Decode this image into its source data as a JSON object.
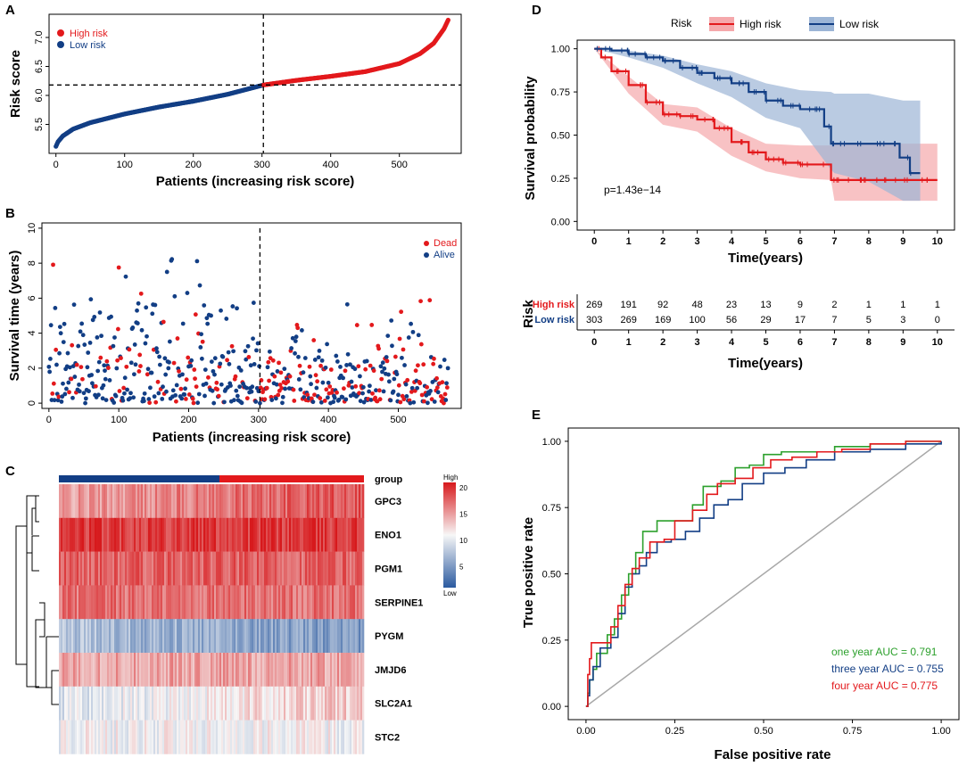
{
  "colors": {
    "high": "#e3191c",
    "low": "#123e85",
    "green": "#2ca02c",
    "grey": "#a8a8a8",
    "heat_high": "#d7191c",
    "heat_mid": "#f7f7f7",
    "heat_low": "#2b5aa0"
  },
  "chart_data": [
    {
      "panel": "A",
      "type": "scatter",
      "xlabel": "Patients (increasing risk score)",
      "ylabel": "Risk score",
      "xlim": [
        -10,
        590
      ],
      "ylim": [
        5.0,
        7.4
      ],
      "xticks": [
        0,
        100,
        200,
        300,
        400,
        500
      ],
      "yticks": [
        5.5,
        6.0,
        6.5,
        7.0
      ],
      "cutoff_x": 302,
      "cutoff_y": 6.18,
      "legend": [
        {
          "label": "High risk",
          "color": "high"
        },
        {
          "label": "Low risk",
          "color": "low"
        }
      ],
      "n_patients": 572,
      "curve": [
        [
          0,
          5.12
        ],
        [
          3,
          5.2
        ],
        [
          10,
          5.3
        ],
        [
          25,
          5.42
        ],
        [
          50,
          5.53
        ],
        [
          100,
          5.68
        ],
        [
          150,
          5.8
        ],
        [
          200,
          5.9
        ],
        [
          250,
          6.02
        ],
        [
          302,
          6.18
        ],
        [
          350,
          6.26
        ],
        [
          400,
          6.33
        ],
        [
          450,
          6.41
        ],
        [
          500,
          6.55
        ],
        [
          530,
          6.72
        ],
        [
          550,
          6.9
        ],
        [
          565,
          7.15
        ],
        [
          571,
          7.3
        ]
      ]
    },
    {
      "panel": "B",
      "type": "scatter",
      "xlabel": "Patients (increasing risk score)",
      "ylabel": "Survival time (years)",
      "xlim": [
        -10,
        590
      ],
      "ylim": [
        -0.3,
        10.3
      ],
      "xticks": [
        0,
        100,
        200,
        300,
        400,
        500
      ],
      "yticks": [
        0,
        2,
        4,
        6,
        8,
        10
      ],
      "cutoff_x": 302,
      "legend": [
        {
          "label": "Dead",
          "color": "high"
        },
        {
          "label": "Alive",
          "color": "low"
        }
      ]
    },
    {
      "panel": "C",
      "type": "heatmap",
      "genes": [
        "GPC3",
        "ENO1",
        "PGM1",
        "SERPINE1",
        "PYGM",
        "JMJD6",
        "SLC2A1",
        "STC2"
      ],
      "group_label": "group",
      "legend_title": "High",
      "legend_bottom": "Low",
      "legend_ticks": [
        20,
        15,
        10,
        5
      ],
      "mean_values": [
        17.5,
        20.5,
        18.5,
        17.8,
        6.5,
        15.5,
        12.0,
        11.5
      ],
      "group_split": 0.53
    },
    {
      "panel": "D",
      "type": "line",
      "xlabel": "Time(years)",
      "ylabel": "Survival probability",
      "xlim": [
        -0.5,
        10.5
      ],
      "ylim": [
        -0.05,
        1.05
      ],
      "xticks": [
        0,
        1,
        2,
        3,
        4,
        5,
        6,
        7,
        8,
        9,
        10
      ],
      "yticks": [
        "0.00",
        "0.25",
        "0.50",
        "0.75",
        "1.00"
      ],
      "legend_title": "Risk",
      "pvalue": "p=1.43e−14",
      "series": [
        {
          "name": "High risk",
          "color": "high",
          "steps": [
            [
              0,
              1.0
            ],
            [
              0.2,
              0.95
            ],
            [
              0.5,
              0.87
            ],
            [
              1,
              0.79
            ],
            [
              1.5,
              0.69
            ],
            [
              2,
              0.62
            ],
            [
              2.5,
              0.61
            ],
            [
              3,
              0.59
            ],
            [
              3.5,
              0.54
            ],
            [
              4,
              0.46
            ],
            [
              4.5,
              0.4
            ],
            [
              5,
              0.36
            ],
            [
              5.5,
              0.34
            ],
            [
              6,
              0.33
            ],
            [
              6.8,
              0.33
            ],
            [
              6.9,
              0.24
            ],
            [
              10,
              0.24
            ]
          ]
        },
        {
          "name": "Low risk",
          "color": "low",
          "steps": [
            [
              0,
              1.0
            ],
            [
              0.5,
              0.99
            ],
            [
              1,
              0.97
            ],
            [
              1.5,
              0.95
            ],
            [
              2,
              0.93
            ],
            [
              2.5,
              0.89
            ],
            [
              3,
              0.86
            ],
            [
              3.5,
              0.83
            ],
            [
              4,
              0.8
            ],
            [
              4.5,
              0.75
            ],
            [
              5,
              0.7
            ],
            [
              5.5,
              0.67
            ],
            [
              6,
              0.65
            ],
            [
              6.5,
              0.65
            ],
            [
              6.7,
              0.55
            ],
            [
              6.9,
              0.45
            ],
            [
              8,
              0.45
            ],
            [
              8.5,
              0.45
            ],
            [
              8.9,
              0.37
            ],
            [
              9.2,
              0.28
            ],
            [
              9.5,
              0.28
            ]
          ]
        }
      ],
      "bands": [
        {
          "color": "high",
          "upper": [
            [
              0,
              1.0
            ],
            [
              1,
              0.84
            ],
            [
              2,
              0.68
            ],
            [
              3,
              0.66
            ],
            [
              4,
              0.54
            ],
            [
              5,
              0.45
            ],
            [
              6,
              0.44
            ],
            [
              6.9,
              0.44
            ],
            [
              7,
              0.45
            ],
            [
              10,
              0.45
            ]
          ],
          "lower": [
            [
              0,
              1.0
            ],
            [
              1,
              0.74
            ],
            [
              2,
              0.56
            ],
            [
              3,
              0.52
            ],
            [
              4,
              0.38
            ],
            [
              5,
              0.29
            ],
            [
              6,
              0.25
            ],
            [
              6.9,
              0.24
            ],
            [
              7,
              0.12
            ],
            [
              10,
              0.12
            ]
          ]
        },
        {
          "color": "low",
          "upper": [
            [
              0,
              1.0
            ],
            [
              1,
              0.99
            ],
            [
              2,
              0.96
            ],
            [
              3,
              0.91
            ],
            [
              4,
              0.87
            ],
            [
              5,
              0.8
            ],
            [
              6,
              0.76
            ],
            [
              6.9,
              0.75
            ],
            [
              7,
              0.74
            ],
            [
              8,
              0.74
            ],
            [
              9,
              0.7
            ],
            [
              9.5,
              0.7
            ]
          ],
          "lower": [
            [
              0,
              1.0
            ],
            [
              1,
              0.95
            ],
            [
              2,
              0.89
            ],
            [
              3,
              0.8
            ],
            [
              4,
              0.72
            ],
            [
              5,
              0.6
            ],
            [
              6,
              0.54
            ],
            [
              6.9,
              0.3
            ],
            [
              7,
              0.28
            ],
            [
              8,
              0.23
            ],
            [
              9,
              0.12
            ],
            [
              9.5,
              0.12
            ]
          ]
        }
      ]
    },
    {
      "panel": "D-risk-table",
      "type": "table",
      "ylabel": "Risk",
      "xlabel": "Time(years)",
      "xticks": [
        0,
        1,
        2,
        3,
        4,
        5,
        6,
        7,
        8,
        9,
        10
      ],
      "rows": [
        {
          "label": "High risk",
          "color": "high",
          "values": [
            269,
            191,
            92,
            48,
            23,
            13,
            9,
            2,
            1,
            1,
            1
          ]
        },
        {
          "label": "Low risk",
          "color": "low",
          "values": [
            303,
            269,
            169,
            100,
            56,
            29,
            17,
            7,
            5,
            3,
            0
          ]
        }
      ]
    },
    {
      "panel": "E",
      "type": "line",
      "xlabel": "False positive rate",
      "ylabel": "True positive rate",
      "xlim": [
        -0.05,
        1.05
      ],
      "ylim": [
        -0.05,
        1.05
      ],
      "xticks": [
        "0.00",
        "0.25",
        "0.50",
        "0.75",
        "1.00"
      ],
      "yticks": [
        "0.00",
        "0.25",
        "0.50",
        "0.75",
        "1.00"
      ],
      "series": [
        {
          "name": "one year AUC =  0.791",
          "color": "green",
          "points": [
            [
              0,
              0
            ],
            [
              0.005,
              0.05
            ],
            [
              0.01,
              0.1
            ],
            [
              0.02,
              0.14
            ],
            [
              0.03,
              0.2
            ],
            [
              0.06,
              0.27
            ],
            [
              0.08,
              0.33
            ],
            [
              0.1,
              0.42
            ],
            [
              0.12,
              0.5
            ],
            [
              0.14,
              0.58
            ],
            [
              0.16,
              0.66
            ],
            [
              0.2,
              0.7
            ],
            [
              0.25,
              0.7
            ],
            [
              0.3,
              0.76
            ],
            [
              0.33,
              0.83
            ],
            [
              0.38,
              0.85
            ],
            [
              0.42,
              0.9
            ],
            [
              0.46,
              0.91
            ],
            [
              0.5,
              0.95
            ],
            [
              0.55,
              0.96
            ],
            [
              0.62,
              0.96
            ],
            [
              0.7,
              0.98
            ],
            [
              0.8,
              0.99
            ],
            [
              0.9,
              1.0
            ],
            [
              1,
              1
            ]
          ]
        },
        {
          "name": "three year AUC =  0.755",
          "color": "low",
          "points": [
            [
              0,
              0
            ],
            [
              0.005,
              0.04
            ],
            [
              0.01,
              0.1
            ],
            [
              0.02,
              0.15
            ],
            [
              0.04,
              0.22
            ],
            [
              0.07,
              0.26
            ],
            [
              0.09,
              0.35
            ],
            [
              0.11,
              0.45
            ],
            [
              0.13,
              0.5
            ],
            [
              0.15,
              0.53
            ],
            [
              0.17,
              0.58
            ],
            [
              0.2,
              0.62
            ],
            [
              0.24,
              0.63
            ],
            [
              0.28,
              0.66
            ],
            [
              0.32,
              0.71
            ],
            [
              0.36,
              0.76
            ],
            [
              0.4,
              0.78
            ],
            [
              0.44,
              0.84
            ],
            [
              0.5,
              0.88
            ],
            [
              0.56,
              0.9
            ],
            [
              0.62,
              0.93
            ],
            [
              0.7,
              0.96
            ],
            [
              0.8,
              0.97
            ],
            [
              0.9,
              0.99
            ],
            [
              1,
              1
            ]
          ]
        },
        {
          "name": "four year AUC =  0.775",
          "color": "high",
          "points": [
            [
              0,
              0
            ],
            [
              0.005,
              0.12
            ],
            [
              0.01,
              0.18
            ],
            [
              0.015,
              0.24
            ],
            [
              0.05,
              0.24
            ],
            [
              0.07,
              0.3
            ],
            [
              0.09,
              0.38
            ],
            [
              0.11,
              0.46
            ],
            [
              0.13,
              0.52
            ],
            [
              0.15,
              0.56
            ],
            [
              0.18,
              0.62
            ],
            [
              0.22,
              0.63
            ],
            [
              0.25,
              0.7
            ],
            [
              0.3,
              0.74
            ],
            [
              0.34,
              0.8
            ],
            [
              0.37,
              0.84
            ],
            [
              0.42,
              0.86
            ],
            [
              0.47,
              0.9
            ],
            [
              0.52,
              0.93
            ],
            [
              0.58,
              0.94
            ],
            [
              0.65,
              0.96
            ],
            [
              0.72,
              0.97
            ],
            [
              0.8,
              0.99
            ],
            [
              0.9,
              1.0
            ],
            [
              1,
              1
            ]
          ]
        }
      ]
    }
  ]
}
